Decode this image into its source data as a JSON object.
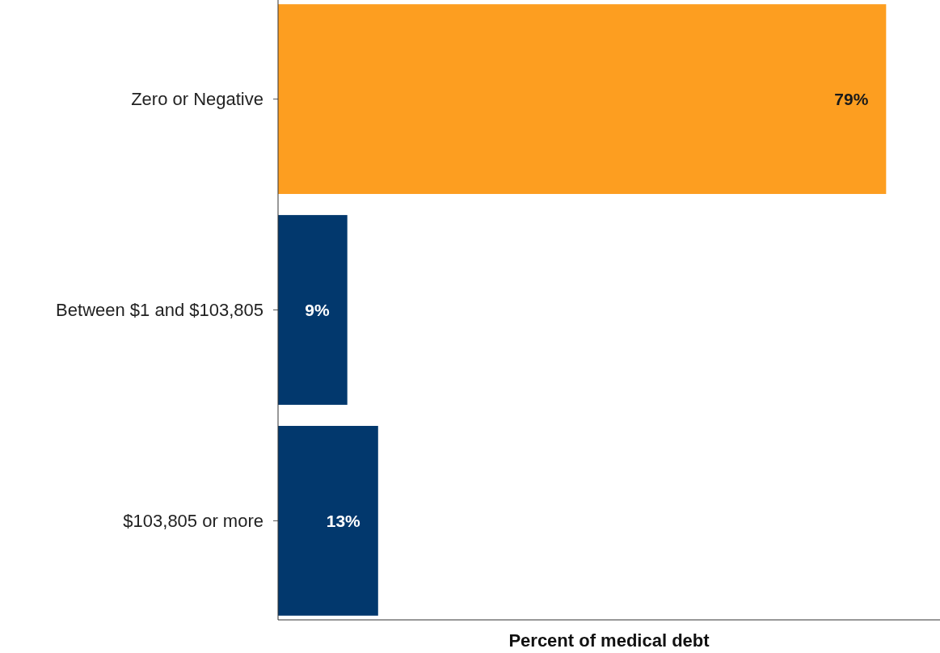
{
  "chart_data": {
    "type": "bar",
    "orientation": "horizontal",
    "xlabel": "Percent of medical debt",
    "categories": [
      "Zero or Negative",
      "Between $1 and $103,805",
      "$103,805 or more"
    ],
    "values": [
      79,
      9,
      13
    ],
    "colors": [
      "#fd9e20",
      "#02386d",
      "#02386d"
    ],
    "value_labels": [
      "79%",
      "9%",
      "13%"
    ],
    "xlim": [
      0,
      86
    ],
    "tick_labels": "y"
  }
}
